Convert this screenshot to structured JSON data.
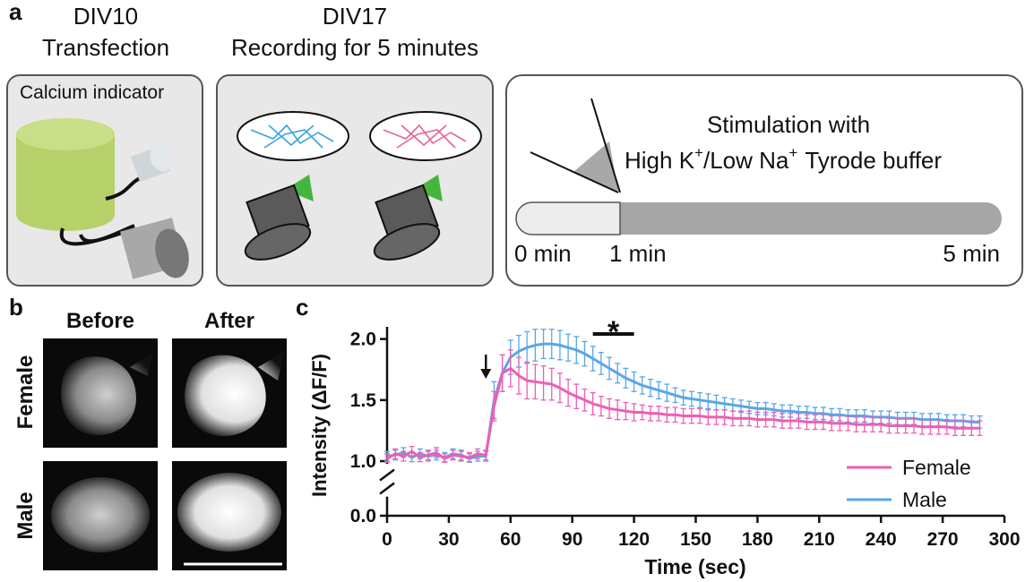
{
  "panel_a": {
    "label": "a",
    "step1": {
      "day": "DIV10",
      "action": "Transfection",
      "box_label": "Calcium indicator"
    },
    "step2": {
      "day": "DIV17",
      "action": "Recording for 5 minutes"
    },
    "stimulation": {
      "line1": "Stimulation with",
      "line2": [
        "High K",
        "+",
        "/Low Na",
        "+",
        "Tyrode buffer"
      ],
      "timeline_labels": [
        "0 min",
        "1 min",
        "5 min"
      ]
    }
  },
  "panel_b": {
    "label": "b",
    "columns": [
      "Before",
      "After"
    ],
    "rows": [
      "Female",
      "Male"
    ]
  },
  "chart_data": {
    "type": "line",
    "panel_label": "c",
    "x_label": "Time (sec)",
    "y_label": "Intensity (ΔF/F)",
    "x": [
      0,
      4,
      8,
      12,
      16,
      20,
      24,
      28,
      32,
      36,
      40,
      44,
      48,
      52,
      56,
      60,
      64,
      68,
      72,
      76,
      80,
      84,
      88,
      92,
      96,
      100,
      104,
      108,
      112,
      116,
      120,
      124,
      128,
      132,
      136,
      140,
      144,
      148,
      152,
      156,
      160,
      164,
      168,
      172,
      176,
      180,
      184,
      188,
      192,
      196,
      200,
      204,
      208,
      212,
      216,
      220,
      224,
      228,
      232,
      236,
      240,
      244,
      248,
      252,
      256,
      260,
      264,
      268,
      272,
      276,
      280,
      284,
      288
    ],
    "series": [
      {
        "name": "Male",
        "color": "#5aa6e6",
        "values": [
          1.04,
          1.05,
          1.07,
          1.03,
          1.06,
          1.04,
          1.05,
          1.03,
          1.06,
          1.05,
          1.02,
          1.04,
          1.04,
          1.5,
          1.72,
          1.85,
          1.9,
          1.93,
          1.95,
          1.96,
          1.96,
          1.95,
          1.93,
          1.91,
          1.88,
          1.84,
          1.8,
          1.76,
          1.72,
          1.68,
          1.65,
          1.62,
          1.6,
          1.58,
          1.56,
          1.54,
          1.52,
          1.51,
          1.5,
          1.49,
          1.48,
          1.47,
          1.46,
          1.45,
          1.44,
          1.43,
          1.43,
          1.42,
          1.41,
          1.41,
          1.4,
          1.4,
          1.39,
          1.39,
          1.38,
          1.38,
          1.37,
          1.37,
          1.37,
          1.36,
          1.36,
          1.36,
          1.35,
          1.35,
          1.35,
          1.34,
          1.34,
          1.34,
          1.33,
          1.33,
          1.33,
          1.32,
          1.32
        ],
        "errors": [
          0.04,
          0.04,
          0.04,
          0.04,
          0.04,
          0.04,
          0.04,
          0.04,
          0.04,
          0.04,
          0.04,
          0.04,
          0.04,
          0.15,
          0.15,
          0.14,
          0.13,
          0.13,
          0.13,
          0.12,
          0.12,
          0.12,
          0.11,
          0.11,
          0.1,
          0.1,
          0.09,
          0.09,
          0.08,
          0.08,
          0.08,
          0.07,
          0.07,
          0.07,
          0.07,
          0.06,
          0.06,
          0.06,
          0.06,
          0.06,
          0.06,
          0.05,
          0.05,
          0.05,
          0.05,
          0.05,
          0.05,
          0.05,
          0.05,
          0.05,
          0.05,
          0.05,
          0.05,
          0.05,
          0.05,
          0.05,
          0.05,
          0.05,
          0.05,
          0.05,
          0.05,
          0.05,
          0.05,
          0.05,
          0.05,
          0.05,
          0.05,
          0.05,
          0.05,
          0.05,
          0.05,
          0.05,
          0.05
        ]
      },
      {
        "name": "Female",
        "color": "#ec5fb4",
        "values": [
          1.02,
          1.06,
          1.04,
          1.08,
          1.03,
          1.05,
          1.07,
          1.02,
          1.05,
          1.04,
          1.03,
          1.06,
          1.05,
          1.45,
          1.72,
          1.76,
          1.7,
          1.66,
          1.65,
          1.64,
          1.63,
          1.6,
          1.56,
          1.53,
          1.5,
          1.47,
          1.45,
          1.43,
          1.42,
          1.41,
          1.4,
          1.4,
          1.39,
          1.39,
          1.38,
          1.38,
          1.37,
          1.37,
          1.37,
          1.36,
          1.36,
          1.36,
          1.35,
          1.35,
          1.35,
          1.34,
          1.34,
          1.34,
          1.33,
          1.33,
          1.33,
          1.32,
          1.32,
          1.32,
          1.31,
          1.31,
          1.31,
          1.3,
          1.3,
          1.3,
          1.3,
          1.29,
          1.29,
          1.29,
          1.29,
          1.28,
          1.28,
          1.28,
          1.28,
          1.27,
          1.27,
          1.27,
          1.27
        ],
        "errors": [
          0.04,
          0.04,
          0.04,
          0.04,
          0.04,
          0.04,
          0.04,
          0.04,
          0.04,
          0.04,
          0.04,
          0.04,
          0.04,
          0.12,
          0.15,
          0.15,
          0.15,
          0.15,
          0.14,
          0.14,
          0.13,
          0.12,
          0.11,
          0.1,
          0.09,
          0.09,
          0.08,
          0.08,
          0.08,
          0.07,
          0.07,
          0.06,
          0.06,
          0.06,
          0.06,
          0.06,
          0.06,
          0.06,
          0.06,
          0.06,
          0.06,
          0.06,
          0.06,
          0.06,
          0.06,
          0.06,
          0.06,
          0.06,
          0.06,
          0.06,
          0.06,
          0.06,
          0.06,
          0.06,
          0.06,
          0.06,
          0.06,
          0.06,
          0.06,
          0.06,
          0.06,
          0.06,
          0.06,
          0.06,
          0.06,
          0.06,
          0.06,
          0.06,
          0.06,
          0.06,
          0.06,
          0.06,
          0.06
        ]
      }
    ],
    "xlim": [
      0,
      300
    ],
    "xticks": [
      0,
      30,
      60,
      90,
      120,
      150,
      180,
      210,
      240,
      270,
      300
    ],
    "ylim": [
      0,
      2.1
    ],
    "yticks": [
      {
        "value": 0,
        "label": "0.0"
      },
      {
        "value": 1,
        "label": "1.0"
      },
      1.5,
      {
        "value": 2,
        "label": "2.0"
      }
    ],
    "axis_break": true,
    "grid": false,
    "legend": "lower right",
    "stimulus_arrow_x": 48,
    "significance": {
      "label": "*",
      "x": [
        100,
        120
      ]
    }
  }
}
